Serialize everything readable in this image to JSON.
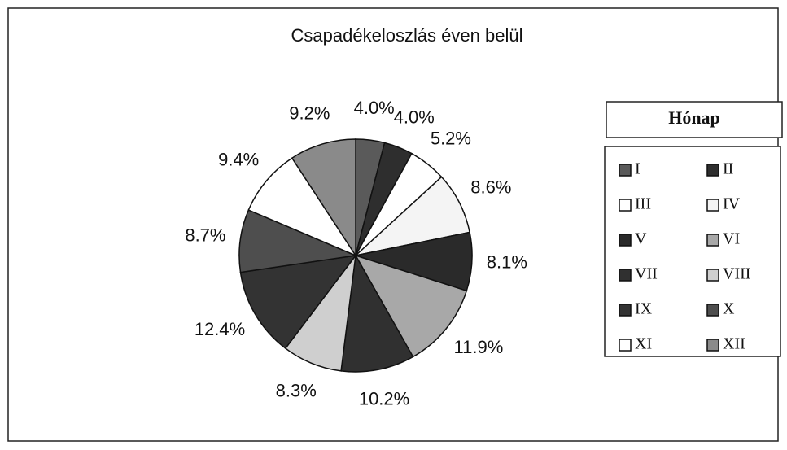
{
  "chart_data": {
    "type": "pie",
    "title": "Csapadékeloszlás éven belül",
    "legend_title": "Hónap",
    "categories": [
      "I",
      "II",
      "III",
      "IV",
      "V",
      "VI",
      "VII",
      "VIII",
      "IX",
      "X",
      "XI",
      "XII"
    ],
    "values": [
      4,
      4,
      5.2,
      8.6,
      8.1,
      11.9,
      10.2,
      8.3,
      12.4,
      8.7,
      9.4,
      9.2
    ],
    "value_labels": [
      "4.0%",
      "4.0%",
      "5.2%",
      "8.6%",
      "8.1%",
      "11.9%",
      "10.2%",
      "8.3%",
      "12.4%",
      "8.7%",
      "9.4%",
      "9.2%"
    ],
    "colors": [
      "#5a5a5a",
      "#2e2e2e",
      "#ffffff",
      "#f4f4f4",
      "#2a2a2a",
      "#a8a8a8",
      "#303030",
      "#cfcfcf",
      "#333333",
      "#4e4e4e",
      "#ffffff",
      "#8a8a8a"
    ],
    "legend": "right"
  }
}
